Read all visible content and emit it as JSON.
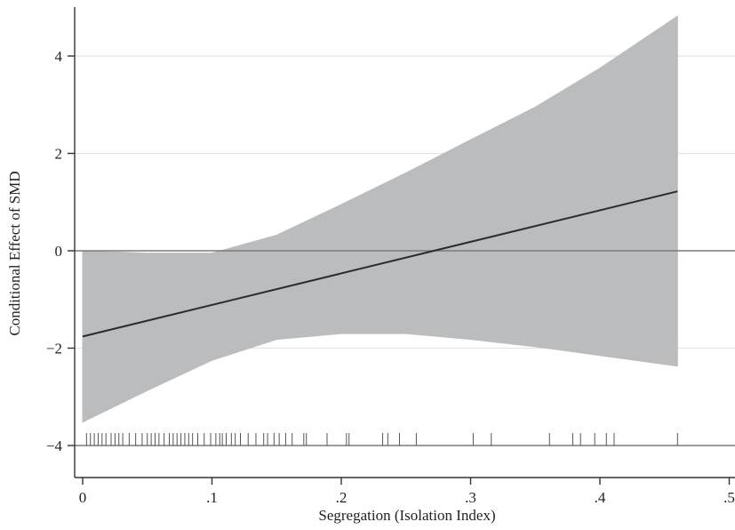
{
  "chart_data": {
    "type": "line",
    "xlabel": "Segregation (Isolation Index)",
    "ylabel": "Conditional Effect of SMD",
    "xlim": [
      -0.01,
      0.5
    ],
    "ylim": [
      -4.5,
      5
    ],
    "x_ticks": [
      {
        "value": 0,
        "label": "0"
      },
      {
        "value": 0.1,
        "label": ".1"
      },
      {
        "value": 0.2,
        "label": ".2"
      },
      {
        "value": 0.3,
        "label": ".3"
      },
      {
        "value": 0.4,
        "label": ".4"
      },
      {
        "value": 0.5,
        "label": ".5"
      }
    ],
    "y_ticks": [
      {
        "value": 4,
        "label": "4"
      },
      {
        "value": 2,
        "label": "2"
      },
      {
        "value": 0,
        "label": "0"
      },
      {
        "value": -2,
        "label": "−2"
      },
      {
        "value": -4,
        "label": "−4"
      }
    ],
    "gridlines_y": [
      4,
      2,
      -2
    ],
    "grid": true,
    "reference_line_y": 0,
    "rug_baseline_y": -4,
    "line": {
      "x": [
        0,
        0.46
      ],
      "y": [
        -1.76,
        1.22
      ]
    },
    "ci_band": {
      "x": [
        0.0,
        0.05,
        0.1,
        0.15,
        0.2,
        0.25,
        0.3,
        0.35,
        0.4,
        0.46
      ],
      "upper": [
        0.0,
        -0.05,
        -0.05,
        0.32,
        0.95,
        1.6,
        2.28,
        2.95,
        3.75,
        4.82
      ],
      "lower": [
        -3.52,
        -2.87,
        -2.25,
        -1.82,
        -1.7,
        -1.7,
        -1.82,
        -1.97,
        -2.15,
        -2.37
      ]
    },
    "rug": [
      0.003,
      0.006,
      0.009,
      0.012,
      0.015,
      0.018,
      0.022,
      0.025,
      0.028,
      0.031,
      0.036,
      0.041,
      0.046,
      0.05,
      0.053,
      0.056,
      0.059,
      0.063,
      0.067,
      0.07,
      0.073,
      0.076,
      0.079,
      0.082,
      0.085,
      0.089,
      0.094,
      0.099,
      0.103,
      0.106,
      0.108,
      0.111,
      0.115,
      0.118,
      0.122,
      0.128,
      0.134,
      0.14,
      0.143,
      0.148,
      0.152,
      0.157,
      0.162,
      0.171,
      0.173,
      0.189,
      0.204,
      0.206,
      0.232,
      0.236,
      0.245,
      0.258,
      0.302,
      0.316,
      0.361,
      0.379,
      0.385,
      0.396,
      0.405,
      0.411,
      0.46
    ],
    "colors": {
      "band": "#bbbcbe",
      "line": "#2b2b2b",
      "grid": "#e4e4e4",
      "axis": "#333333",
      "reference": "#7a7a7a"
    }
  }
}
